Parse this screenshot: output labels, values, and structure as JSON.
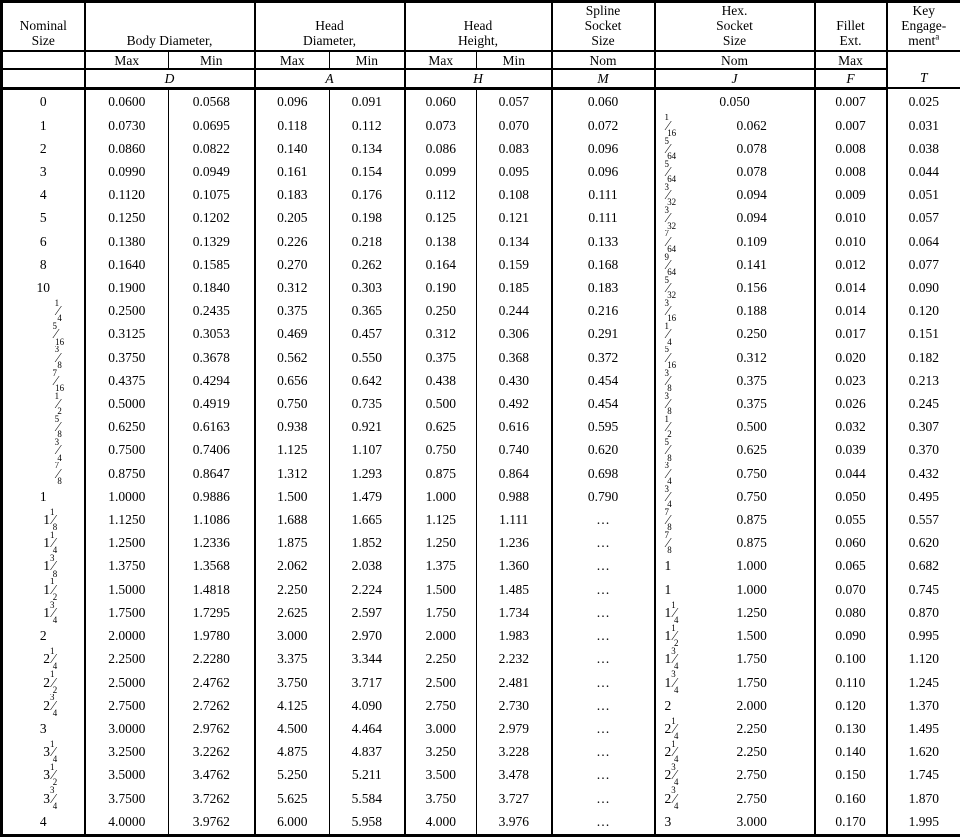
{
  "header": {
    "nominal": "Nominal\nSize",
    "groups": {
      "body": "Body Diameter,",
      "head_dia": "Head\nDiameter,",
      "head_ht": "Head\nHeight,",
      "spline": "Spline\nSocket\nSize",
      "hex": "Hex.\nSocket\nSize",
      "fillet": "Fillet\nExt.",
      "key": {
        "l1": "Key",
        "l2": "Engage-",
        "l3": "ment",
        "sup": "a"
      }
    },
    "sub": {
      "max": "Max",
      "min": "Min",
      "nom": "Nom"
    },
    "letters": {
      "body": "D",
      "head_dia": "A",
      "head_ht": "H",
      "spline": "M",
      "hex": "J",
      "fillet": "F",
      "key": "T"
    }
  },
  "colors": {
    "line": "#000000",
    "background": "#ffffff",
    "text": "#000000"
  },
  "chart_data": {
    "type": "table",
    "title": "Socket head cap screw dimensions",
    "columns": [
      "Nominal Size",
      "Body Diameter Max (D)",
      "Body Diameter Min (D)",
      "Head Diameter Max (A)",
      "Head Diameter Min (A)",
      "Head Height Max (H)",
      "Head Height Min (H)",
      "Spline Socket Size Nom (M)",
      "Hex Socket Size Fraction (J)",
      "Hex Socket Size Decimal (J)",
      "Fillet Ext. Max (F)",
      "Key Engagement (T)"
    ]
  },
  "rows": [
    [
      "0",
      "0.0600",
      "0.0568",
      "0.096",
      "0.091",
      "0.060",
      "0.057",
      "0.060",
      null,
      "0.050",
      "0.007",
      "0.025"
    ],
    [
      "1",
      "0.0730",
      "0.0695",
      "0.118",
      "0.112",
      "0.073",
      "0.070",
      "0.072",
      "1/16",
      "0.062",
      "0.007",
      "0.031"
    ],
    [
      "2",
      "0.0860",
      "0.0822",
      "0.140",
      "0.134",
      "0.086",
      "0.083",
      "0.096",
      "5/64",
      "0.078",
      "0.008",
      "0.038"
    ],
    [
      "3",
      "0.0990",
      "0.0949",
      "0.161",
      "0.154",
      "0.099",
      "0.095",
      "0.096",
      "5/64",
      "0.078",
      "0.008",
      "0.044"
    ],
    [
      "4",
      "0.1120",
      "0.1075",
      "0.183",
      "0.176",
      "0.112",
      "0.108",
      "0.111",
      "3/32",
      "0.094",
      "0.009",
      "0.051"
    ],
    [
      "5",
      "0.1250",
      "0.1202",
      "0.205",
      "0.198",
      "0.125",
      "0.121",
      "0.111",
      "3/32",
      "0.094",
      "0.010",
      "0.057"
    ],
    [
      "6",
      "0.1380",
      "0.1329",
      "0.226",
      "0.218",
      "0.138",
      "0.134",
      "0.133",
      "7/64",
      "0.109",
      "0.010",
      "0.064"
    ],
    [
      "8",
      "0.1640",
      "0.1585",
      "0.270",
      "0.262",
      "0.164",
      "0.159",
      "0.168",
      "9/64",
      "0.141",
      "0.012",
      "0.077"
    ],
    [
      "10",
      "0.1900",
      "0.1840",
      "0.312",
      "0.303",
      "0.190",
      "0.185",
      "0.183",
      "5/32",
      "0.156",
      "0.014",
      "0.090"
    ],
    [
      "1/4",
      "0.2500",
      "0.2435",
      "0.375",
      "0.365",
      "0.250",
      "0.244",
      "0.216",
      "3/16",
      "0.188",
      "0.014",
      "0.120"
    ],
    [
      "5/16",
      "0.3125",
      "0.3053",
      "0.469",
      "0.457",
      "0.312",
      "0.306",
      "0.291",
      "1/4",
      "0.250",
      "0.017",
      "0.151"
    ],
    [
      "3/8",
      "0.3750",
      "0.3678",
      "0.562",
      "0.550",
      "0.375",
      "0.368",
      "0.372",
      "5/16",
      "0.312",
      "0.020",
      "0.182"
    ],
    [
      "7/16",
      "0.4375",
      "0.4294",
      "0.656",
      "0.642",
      "0.438",
      "0.430",
      "0.454",
      "3/8",
      "0.375",
      "0.023",
      "0.213"
    ],
    [
      "1/2",
      "0.5000",
      "0.4919",
      "0.750",
      "0.735",
      "0.500",
      "0.492",
      "0.454",
      "3/8",
      "0.375",
      "0.026",
      "0.245"
    ],
    [
      "5/8",
      "0.6250",
      "0.6163",
      "0.938",
      "0.921",
      "0.625",
      "0.616",
      "0.595",
      "1/2",
      "0.500",
      "0.032",
      "0.307"
    ],
    [
      "3/4",
      "0.7500",
      "0.7406",
      "1.125",
      "1.107",
      "0.750",
      "0.740",
      "0.620",
      "5/8",
      "0.625",
      "0.039",
      "0.370"
    ],
    [
      "7/8",
      "0.8750",
      "0.8647",
      "1.312",
      "1.293",
      "0.875",
      "0.864",
      "0.698",
      "3/4",
      "0.750",
      "0.044",
      "0.432"
    ],
    [
      "1",
      "1.0000",
      "0.9886",
      "1.500",
      "1.479",
      "1.000",
      "0.988",
      "0.790",
      "3/4",
      "0.750",
      "0.050",
      "0.495"
    ],
    [
      "1 1/8",
      "1.1250",
      "1.1086",
      "1.688",
      "1.665",
      "1.125",
      "1.111",
      "…",
      "7/8",
      "0.875",
      "0.055",
      "0.557"
    ],
    [
      "1 1/4",
      "1.2500",
      "1.2336",
      "1.875",
      "1.852",
      "1.250",
      "1.236",
      "…",
      "7/8",
      "0.875",
      "0.060",
      "0.620"
    ],
    [
      "1 3/8",
      "1.3750",
      "1.3568",
      "2.062",
      "2.038",
      "1.375",
      "1.360",
      "…",
      "1",
      "1.000",
      "0.065",
      "0.682"
    ],
    [
      "1 1/2",
      "1.5000",
      "1.4818",
      "2.250",
      "2.224",
      "1.500",
      "1.485",
      "…",
      "1",
      "1.000",
      "0.070",
      "0.745"
    ],
    [
      "1 3/4",
      "1.7500",
      "1.7295",
      "2.625",
      "2.597",
      "1.750",
      "1.734",
      "…",
      "1 1/4",
      "1.250",
      "0.080",
      "0.870"
    ],
    [
      "2",
      "2.0000",
      "1.9780",
      "3.000",
      "2.970",
      "2.000",
      "1.983",
      "…",
      "1 1/2",
      "1.500",
      "0.090",
      "0.995"
    ],
    [
      "2 1/4",
      "2.2500",
      "2.2280",
      "3.375",
      "3.344",
      "2.250",
      "2.232",
      "…",
      "1 3/4",
      "1.750",
      "0.100",
      "1.120"
    ],
    [
      "2 1/2",
      "2.5000",
      "2.4762",
      "3.750",
      "3.717",
      "2.500",
      "2.481",
      "…",
      "1 3/4",
      "1.750",
      "0.110",
      "1.245"
    ],
    [
      "2 3/4",
      "2.7500",
      "2.7262",
      "4.125",
      "4.090",
      "2.750",
      "2.730",
      "…",
      "2",
      "2.000",
      "0.120",
      "1.370"
    ],
    [
      "3",
      "3.0000",
      "2.9762",
      "4.500",
      "4.464",
      "3.000",
      "2.979",
      "…",
      "2 1/4",
      "2.250",
      "0.130",
      "1.495"
    ],
    [
      "3 1/4",
      "3.2500",
      "3.2262",
      "4.875",
      "4.837",
      "3.250",
      "3.228",
      "…",
      "2 1/4",
      "2.250",
      "0.140",
      "1.620"
    ],
    [
      "3 1/2",
      "3.5000",
      "3.4762",
      "5.250",
      "5.211",
      "3.500",
      "3.478",
      "…",
      "2 3/4",
      "2.750",
      "0.150",
      "1.745"
    ],
    [
      "3 3/4",
      "3.7500",
      "3.7262",
      "5.625",
      "5.584",
      "3.750",
      "3.727",
      "…",
      "2 3/4",
      "2.750",
      "0.160",
      "1.870"
    ],
    [
      "4",
      "4.0000",
      "3.9762",
      "6.000",
      "5.958",
      "4.000",
      "3.976",
      "…",
      "3",
      "3.000",
      "0.170",
      "1.995"
    ]
  ]
}
